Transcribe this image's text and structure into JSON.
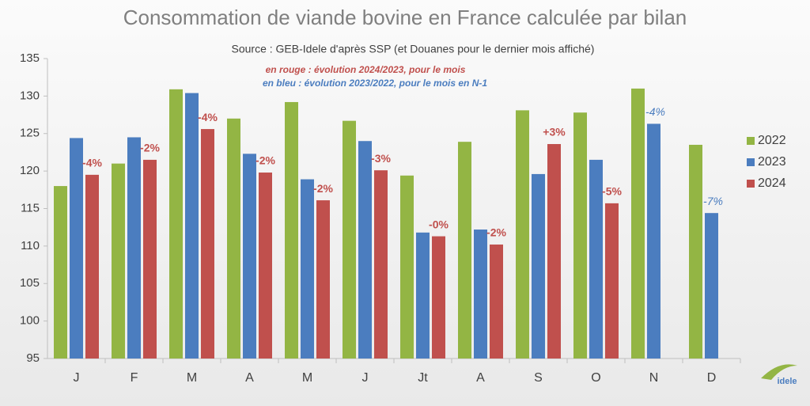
{
  "chart_data": {
    "type": "bar",
    "title": "Consommation de viande bovine en France calculée par bilan",
    "subtitle": "Source : GEB-Idele d'après SSP (et Douanes pour le dernier mois affiché)",
    "notes": [
      "en rouge : évolution 2024/2023, pour le mois",
      "en bleu : évolution 2023/2022, pour le mois en N-1"
    ],
    "logo": "idele",
    "categories": [
      "J",
      "F",
      "M",
      "A",
      "M",
      "J",
      "Jt",
      "A",
      "S",
      "O",
      "N",
      "D"
    ],
    "series": [
      {
        "name": "2022",
        "color": "#93b544",
        "values": [
          118.0,
          121.0,
          130.9,
          127.0,
          129.2,
          126.7,
          119.4,
          123.9,
          128.1,
          127.8,
          131.0,
          123.5
        ]
      },
      {
        "name": "2023",
        "color": "#4b7dbf",
        "values": [
          124.4,
          124.5,
          130.4,
          122.3,
          118.9,
          124.0,
          111.8,
          112.2,
          119.6,
          121.5,
          126.3,
          114.4
        ],
        "change_labels": [
          null,
          null,
          null,
          null,
          null,
          null,
          null,
          null,
          null,
          null,
          "-4%",
          "-7%"
        ]
      },
      {
        "name": "2024",
        "color": "#c0504d",
        "values": [
          119.5,
          121.5,
          125.6,
          119.8,
          116.1,
          120.1,
          111.3,
          110.2,
          123.6,
          115.7,
          null,
          null
        ],
        "change_labels": [
          "-4%",
          "-2%",
          "-4%",
          "-2%",
          "-2%",
          "-3%",
          "-0%",
          "-2%",
          "+3%",
          "-5%",
          null,
          null
        ]
      }
    ],
    "ylim": [
      95,
      135
    ],
    "yticks": [
      95,
      100,
      105,
      110,
      115,
      120,
      125,
      130,
      135
    ],
    "grid": false,
    "legend": "right"
  }
}
